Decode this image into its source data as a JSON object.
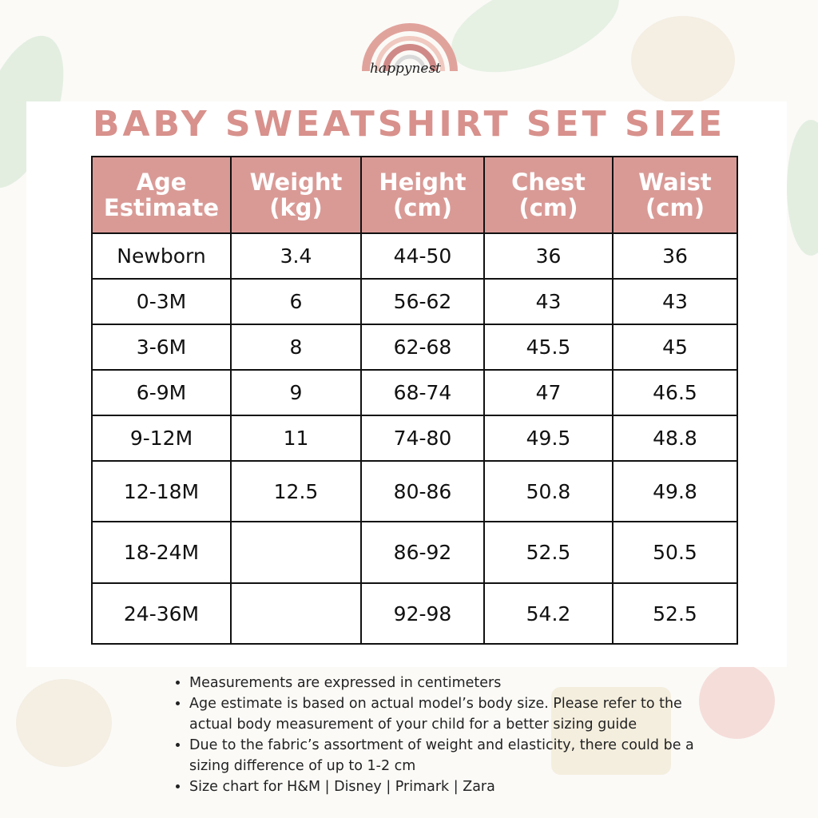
{
  "brand": {
    "logo_text": "happynest",
    "colors": {
      "rainbow": [
        "#e0a39c",
        "#f0c9c0",
        "#cf8a88",
        "#d9d9d9"
      ]
    }
  },
  "title": "Baby Sweatshirt Set Size",
  "colors": {
    "header_bg": "#d99a96",
    "title": "#d8918c"
  },
  "table": {
    "headers": [
      [
        "Age",
        "Estimate"
      ],
      [
        "Weight",
        "(kg)"
      ],
      [
        "Height",
        "(cm)"
      ],
      [
        "Chest",
        "(cm)"
      ],
      [
        "Waist",
        "(cm)"
      ]
    ],
    "rows": [
      [
        "Newborn",
        "3.4",
        "44-50",
        "36",
        "36"
      ],
      [
        "0-3M",
        "6",
        "56-62",
        "43",
        "43"
      ],
      [
        "3-6M",
        "8",
        "62-68",
        "45.5",
        "45"
      ],
      [
        "6-9M",
        "9",
        "68-74",
        "47",
        "46.5"
      ],
      [
        "9-12M",
        "11",
        "74-80",
        "49.5",
        "48.8"
      ],
      [
        "12-18M",
        "12.5",
        "80-86",
        "50.8",
        "49.8"
      ],
      [
        "18-24M",
        "",
        "86-92",
        "52.5",
        "50.5"
      ],
      [
        "24-36M",
        "",
        "92-98",
        "54.2",
        "52.5"
      ]
    ]
  },
  "notes": [
    "Measurements are expressed in centimeters",
    "Age estimate is based on actual model’s body size.  Please refer to the actual body measurement of your child for a better sizing guide",
    "Due to the fabric’s assortment of weight and elasticity, there could be a sizing difference of up to 1-2 cm",
    "Size chart for H&M | Disney | Primark | Zara"
  ]
}
